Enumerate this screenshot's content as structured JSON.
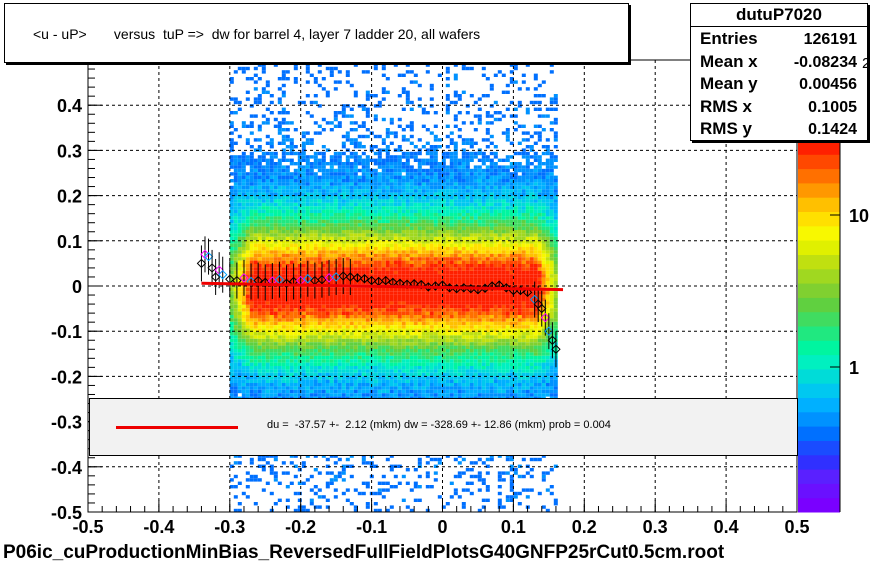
{
  "title": "<u - uP>       versus  tuP =>  dw for barrel 4, layer 7 ladder 20, all wafers",
  "stats": {
    "name": "dutuP7020",
    "rows": [
      {
        "label": "Entries",
        "value": "126191"
      },
      {
        "label": "Mean x",
        "value": "-0.08234"
      },
      {
        "label": "Mean y",
        "value": "0.00456"
      },
      {
        "label": "RMS x",
        "value": "0.1005"
      },
      {
        "label": "RMS y",
        "value": "0.1424"
      }
    ]
  },
  "fit_text": "du =  -37.57 +-  2.12 (mkm) dw = -328.69 +- 12.86 (mkm) prob = 0.004",
  "footer": "P06ic_cuProductionMinBias_ReversedFullFieldPlotsG40GNFP25rCut0.5cm.root",
  "palette_exponent": "2",
  "colors": {
    "fit_line": "#ee0000",
    "palette": [
      "#7a00ff",
      "#6a10ff",
      "#5a20ff",
      "#3030ff",
      "#1a4cff",
      "#0070ff",
      "#0092ff",
      "#00b0ff",
      "#00c8f0",
      "#00dcd8",
      "#00f0c0",
      "#00f5a0",
      "#20e880",
      "#40dc60",
      "#60d040",
      "#80d030",
      "#a0d820",
      "#c0e010",
      "#e0f000",
      "#f8f800",
      "#ffe000",
      "#ffc000",
      "#ff9800",
      "#ff7000",
      "#ff4800",
      "#ff2000"
    ]
  },
  "chart_data": {
    "type": "heatmap",
    "title": "<u - uP>       versus  tuP =>  dw for barrel 4, layer 7 ladder 20, all wafers",
    "xlim": [
      -0.5,
      0.5
    ],
    "ylim": [
      -0.5,
      0.5
    ],
    "x_ticks": [
      "-0.5",
      "-0.4",
      "-0.3",
      "-0.2",
      "-0.1",
      "0",
      "0.1",
      "0.2",
      "0.3",
      "0.4",
      "0.5"
    ],
    "y_ticks": [
      "-0.5",
      "-0.4",
      "-0.3",
      "-0.2",
      "-0.1",
      "0",
      "0.1",
      "0.2",
      "0.3",
      "0.4"
    ],
    "y_ticks_values": [
      -0.5,
      -0.4,
      -0.3,
      -0.2,
      -0.1,
      0,
      0.1,
      0.2,
      0.3,
      0.4
    ],
    "grid": true,
    "x_fill_range": [
      -0.3,
      0.16
    ],
    "palette_labels": [
      {
        "text": "10",
        "value": 10
      },
      {
        "text": "1",
        "value": 1
      }
    ],
    "profile_points": {
      "x": [
        -0.34,
        -0.335,
        -0.33,
        -0.325,
        -0.32,
        -0.315,
        -0.31,
        -0.3,
        -0.29,
        -0.28,
        -0.27,
        -0.26,
        -0.25,
        -0.24,
        -0.23,
        -0.22,
        -0.21,
        -0.2,
        -0.19,
        -0.18,
        -0.17,
        -0.16,
        -0.15,
        -0.14,
        -0.13,
        -0.12,
        -0.11,
        -0.1,
        -0.09,
        -0.08,
        -0.07,
        -0.06,
        -0.05,
        -0.04,
        -0.03,
        -0.02,
        -0.01,
        0,
        0.01,
        0.02,
        0.03,
        0.04,
        0.05,
        0.06,
        0.07,
        0.08,
        0.09,
        0.1,
        0.11,
        0.12,
        0.13,
        0.135,
        0.14,
        0.145,
        0.15,
        0.155,
        0.16
      ],
      "y": [
        0.05,
        0.07,
        0.065,
        0.04,
        0.02,
        0.035,
        0.025,
        0.015,
        0.012,
        0.018,
        0.01,
        0.012,
        0.008,
        0.011,
        0.014,
        0.006,
        0.01,
        0.012,
        0.016,
        0.012,
        0.014,
        0.018,
        0.02,
        0.022,
        0.02,
        0.018,
        0.016,
        0.012,
        0.01,
        0.012,
        0.008,
        0.006,
        0.004,
        0.005,
        0.003,
        -0.002,
        0.0,
        0.002,
        -0.004,
        -0.006,
        -0.004,
        -0.006,
        -0.008,
        -0.005,
        0.0,
        0.002,
        -0.004,
        -0.01,
        -0.01,
        -0.014,
        -0.03,
        -0.04,
        -0.05,
        -0.07,
        -0.1,
        -0.12,
        -0.14
      ]
    },
    "fit_line": {
      "x": [
        -0.34,
        0.17
      ],
      "y": [
        0.006,
        -0.008
      ]
    }
  }
}
